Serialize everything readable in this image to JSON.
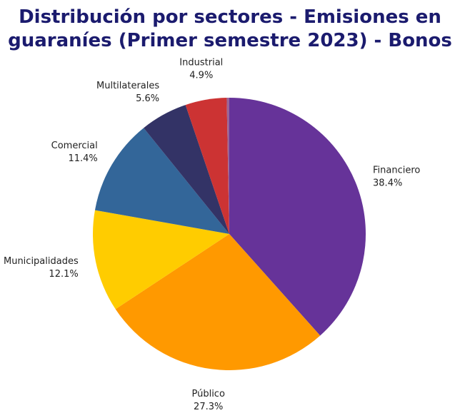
{
  "title": {
    "line1": "Distribución por sectores - Emisiones en",
    "line2": "guaraníes (Primer semestre 2023) - Bonos"
  },
  "chart_data": {
    "type": "pie",
    "title": "Distribución por sectores - Emisiones en guaraníes (Primer semestre 2023) - Bonos",
    "start": "12 o'clock",
    "direction": "clockwise",
    "legend": "none (data labels next to slices)",
    "slices": [
      {
        "label": "Financiero",
        "value": 38.4,
        "display": "38.4%",
        "color": "#663399"
      },
      {
        "label": "Público",
        "value": 27.3,
        "display": "27.3%",
        "color": "#ff9900"
      },
      {
        "label": "Municipalidades",
        "value": 12.1,
        "display": "12.1%",
        "color": "#ffcc00"
      },
      {
        "label": "Comercial",
        "value": 11.4,
        "display": "11.4%",
        "color": "#336699"
      },
      {
        "label": "Multilaterales",
        "value": 5.6,
        "display": "5.6%",
        "color": "#333366"
      },
      {
        "label": "Industrial",
        "value": 4.9,
        "display": "4.9%",
        "color": "#cc3333"
      },
      {
        "label": "",
        "value": 0.3,
        "display": "",
        "color": "#996699"
      }
    ]
  }
}
